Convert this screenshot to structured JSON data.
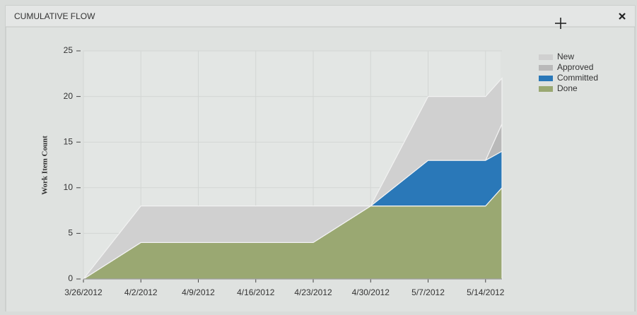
{
  "header": {
    "title": "CUMULATIVE FLOW"
  },
  "chart_data": {
    "type": "stacked-area",
    "y_label": "Work Item Count",
    "x": [
      "3/26/2012",
      "4/2/2012",
      "4/9/2012",
      "4/16/2012",
      "4/23/2012",
      "4/30/2012",
      "5/7/2012",
      "5/14/2012",
      "5/16/2012"
    ],
    "series": [
      {
        "name": "New",
        "color": "#d0d0d0",
        "values": [
          0,
          4,
          4,
          4,
          4,
          0,
          7,
          7,
          5
        ]
      },
      {
        "name": "Approved",
        "color": "#b9b9b9",
        "values": [
          0,
          0,
          0,
          0,
          0,
          0,
          0,
          0,
          3
        ]
      },
      {
        "name": "Committed",
        "color": "#2a78b8",
        "values": [
          0,
          0,
          0,
          0,
          0,
          0,
          5,
          5,
          4
        ]
      },
      {
        "name": "Done",
        "color": "#9aa872",
        "values": [
          0,
          4,
          4,
          4,
          4,
          8,
          8,
          8,
          10
        ]
      }
    ],
    "xlim": [
      "3/26/2012",
      "5/16/2012"
    ],
    "xticks": [
      "3/26/2012",
      "4/2/2012",
      "4/9/2012",
      "4/16/2012",
      "4/23/2012",
      "4/30/2012",
      "5/7/2012",
      "5/14/2012"
    ],
    "ylim": [
      0,
      25
    ],
    "yticks": [
      0,
      5,
      10,
      15,
      20,
      25
    ],
    "grid": true
  }
}
